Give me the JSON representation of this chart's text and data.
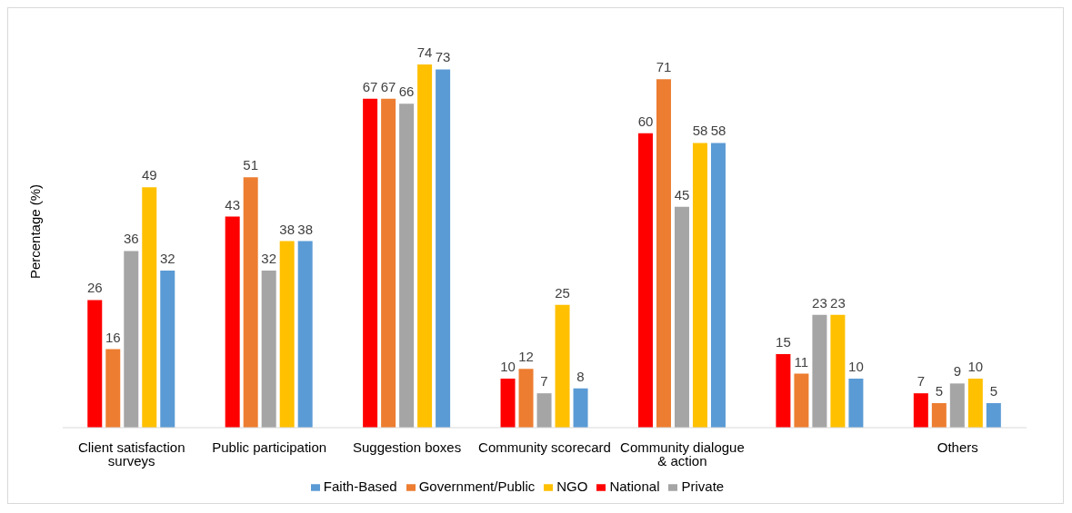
{
  "chart_data": {
    "type": "bar",
    "ylabel": "Percentage (%)",
    "categories": [
      "Client satisfaction surveys",
      "Public participation",
      "Suggestion boxes",
      "Community scorecard",
      "Community dialogue & action",
      null,
      "Others"
    ],
    "series": [
      {
        "name": "National",
        "color": "#ff0000",
        "values": [
          26,
          43,
          67,
          10,
          60,
          15,
          7
        ]
      },
      {
        "name": "Government/Public",
        "color": "#ed7d31",
        "values": [
          16,
          51,
          67,
          12,
          71,
          11,
          5
        ]
      },
      {
        "name": "Private",
        "color": "#a5a5a5",
        "values": [
          36,
          32,
          66,
          7,
          45,
          23,
          9
        ]
      },
      {
        "name": "NGO",
        "color": "#ffc000",
        "values": [
          49,
          38,
          74,
          25,
          58,
          23,
          10
        ]
      },
      {
        "name": "Faith-Based",
        "color": "#5b9bd5",
        "values": [
          32,
          38,
          73,
          8,
          58,
          10,
          5
        ]
      }
    ],
    "data_labels": true,
    "legend": "bottom"
  }
}
